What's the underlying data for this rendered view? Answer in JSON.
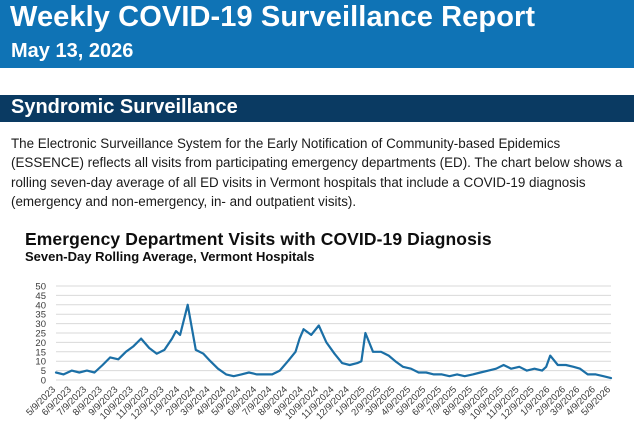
{
  "header": {
    "title": "Weekly COVID-19 Surveillance Report",
    "date": "May 13, 2026",
    "banner_color": "#0f73b5"
  },
  "section": {
    "title": "Syndromic Surveillance",
    "bar_color": "#0a3a62",
    "paragraph": "The Electronic Surveillance System for the Early Notification of Community-based Epidemics (ESSENCE) reflects all visits from participating emergency departments (ED). The chart below shows a rolling seven-day average of all ED visits in Vermont hospitals that include a COVID-19 diagnosis (emergency and non-emergency, in- and outpatient visits)."
  },
  "chart_data": {
    "type": "line",
    "title": "Emergency Department Visits with COVID-19 Diagnosis",
    "subtitle": "Seven-Day Rolling Average, Vermont Hospitals",
    "xlabel": "",
    "ylabel": "",
    "ylim": [
      0,
      50
    ],
    "yticks": [
      0,
      5,
      10,
      15,
      20,
      25,
      30,
      35,
      40,
      45,
      50
    ],
    "grid": true,
    "legend": "none",
    "line_color": "#1b6fa6",
    "x_tick_labels": [
      "5/9/2023",
      "6/9/2023",
      "7/9/2023",
      "8/9/2023",
      "9/9/2023",
      "10/9/2023",
      "11/9/2023",
      "12/9/2023",
      "1/9/2024",
      "2/9/2024",
      "3/9/2024",
      "4/9/2024",
      "5/9/2024",
      "6/9/2024",
      "7/9/2024",
      "8/9/2024",
      "9/9/2024",
      "10/9/2024",
      "11/9/2024",
      "12/9/2024",
      "1/9/2025",
      "2/9/2025",
      "3/9/2025",
      "4/9/2025",
      "5/9/2025",
      "6/9/2025",
      "7/9/2025",
      "8/9/2025",
      "9/9/2025",
      "10/9/2025",
      "11/9/2025",
      "12/9/2025",
      "1/9/2026",
      "2/9/2026",
      "3/9/2026",
      "4/9/2026",
      "5/9/2026"
    ],
    "x": [
      "5/9/2023",
      "5/24/2023",
      "6/9/2023",
      "6/24/2023",
      "7/9/2023",
      "7/24/2023",
      "8/9/2023",
      "8/24/2023",
      "9/9/2023",
      "9/24/2023",
      "10/9/2023",
      "10/24/2023",
      "11/9/2023",
      "11/24/2023",
      "12/9/2023",
      "12/24/2023",
      "1/1/2024",
      "1/9/2024",
      "1/24/2024",
      "2/9/2024",
      "2/24/2024",
      "3/9/2024",
      "3/24/2024",
      "4/9/2024",
      "4/24/2024",
      "5/9/2024",
      "5/24/2024",
      "6/9/2024",
      "6/24/2024",
      "7/9/2024",
      "7/24/2024",
      "8/9/2024",
      "8/24/2024",
      "9/1/2024",
      "9/9/2024",
      "9/24/2024",
      "10/9/2024",
      "10/24/2024",
      "11/9/2024",
      "11/24/2024",
      "12/9/2024",
      "12/24/2024",
      "1/1/2025",
      "1/9/2025",
      "1/24/2025",
      "2/9/2025",
      "2/24/2025",
      "3/9/2025",
      "3/24/2025",
      "4/9/2025",
      "4/24/2025",
      "5/9/2025",
      "5/24/2025",
      "6/9/2025",
      "6/24/2025",
      "7/9/2025",
      "7/24/2025",
      "8/9/2025",
      "8/24/2025",
      "9/9/2025",
      "9/24/2025",
      "10/9/2025",
      "10/24/2025",
      "11/9/2025",
      "11/24/2025",
      "12/9/2025",
      "12/24/2025",
      "1/1/2026",
      "1/9/2026",
      "1/24/2026",
      "2/9/2026",
      "2/24/2026",
      "3/9/2026",
      "3/24/2026",
      "4/9/2026",
      "4/24/2026",
      "5/9/2026"
    ],
    "series": [
      {
        "values": [
          4,
          3,
          5,
          4,
          5,
          4,
          8,
          12,
          11,
          15,
          18,
          22,
          17,
          14,
          16,
          22,
          26,
          24,
          40,
          16,
          14,
          10,
          6,
          3,
          2,
          3,
          4,
          3,
          3,
          3,
          5,
          10,
          15,
          22,
          27,
          24,
          29,
          20,
          14,
          9,
          8,
          9,
          10,
          25,
          15,
          15,
          13,
          10,
          7,
          6,
          4,
          4,
          3,
          3,
          2,
          3,
          2,
          3,
          4,
          5,
          6,
          8,
          6,
          7,
          5,
          6,
          5,
          7,
          13,
          8,
          8,
          7,
          6,
          3,
          3,
          2,
          1
        ]
      }
    ]
  }
}
